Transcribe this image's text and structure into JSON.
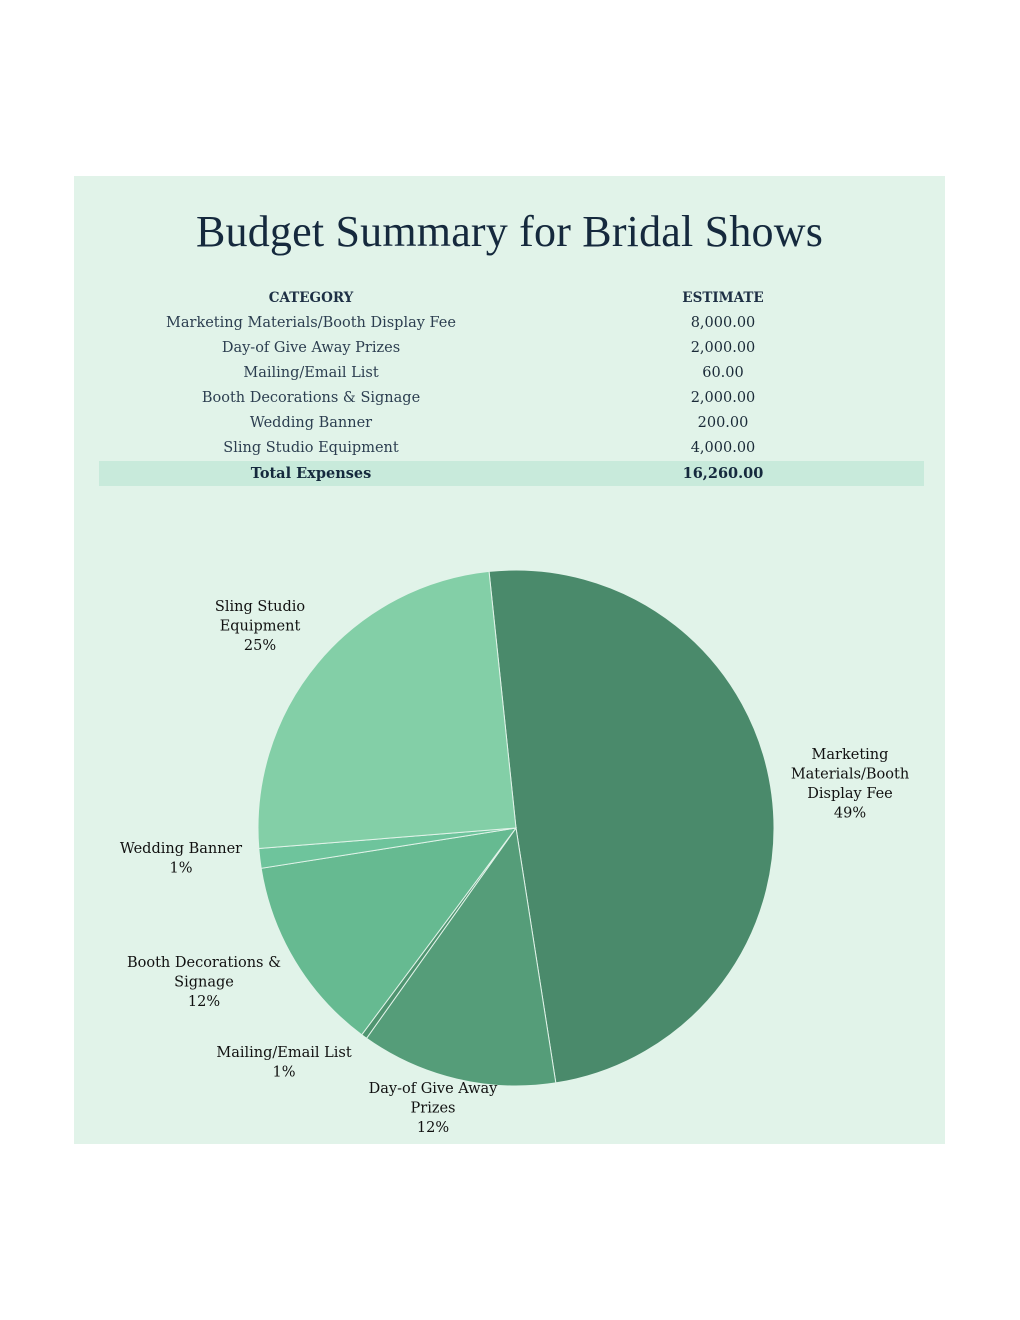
{
  "title": "Budget Summary for Bridal Shows",
  "table": {
    "headers": {
      "category": "CATEGORY",
      "estimate": "ESTIMATE"
    },
    "rows": [
      {
        "category": "Marketing Materials/Booth Display Fee",
        "estimate": "8,000.00"
      },
      {
        "category": "Day-of Give Away Prizes",
        "estimate": "2,000.00"
      },
      {
        "category": "Mailing/Email List",
        "estimate": "60.00"
      },
      {
        "category": "Booth Decorations & Signage",
        "estimate": "2,000.00"
      },
      {
        "category": "Wedding Banner",
        "estimate": "200.00"
      },
      {
        "category": "Sling Studio Equipment",
        "estimate": "4,000.00"
      }
    ],
    "total": {
      "label": "Total Expenses",
      "value": "16,260.00"
    }
  },
  "chart_data": {
    "type": "pie",
    "categories": [
      "Marketing Materials/Booth Display Fee",
      "Day-of Give Away Prizes",
      "Mailing/Email List",
      "Booth Decorations & Signage",
      "Wedding Banner",
      "Sling Studio Equipment"
    ],
    "values": [
      8000,
      2000,
      60,
      2000,
      200,
      4000
    ],
    "data_labels": [
      [
        "Marketing",
        "Materials/Booth",
        "Display Fee",
        "49%"
      ],
      [
        "Day-of Give Away",
        "Prizes",
        "12%"
      ],
      [
        "Mailing/Email List",
        "1%"
      ],
      [
        "Booth Decorations &",
        "Signage",
        "12%"
      ],
      [
        "Wedding Banner",
        "1%"
      ],
      [
        "Sling Studio",
        "Equipment",
        "25%"
      ]
    ],
    "colors": [
      "#4a8a6b",
      "#559d79",
      "#4f9470",
      "#66ba91",
      "#6ec49c",
      "#83cfa7"
    ],
    "start_angle_deg": -6,
    "direction": "clockwise",
    "legend": "none"
  }
}
